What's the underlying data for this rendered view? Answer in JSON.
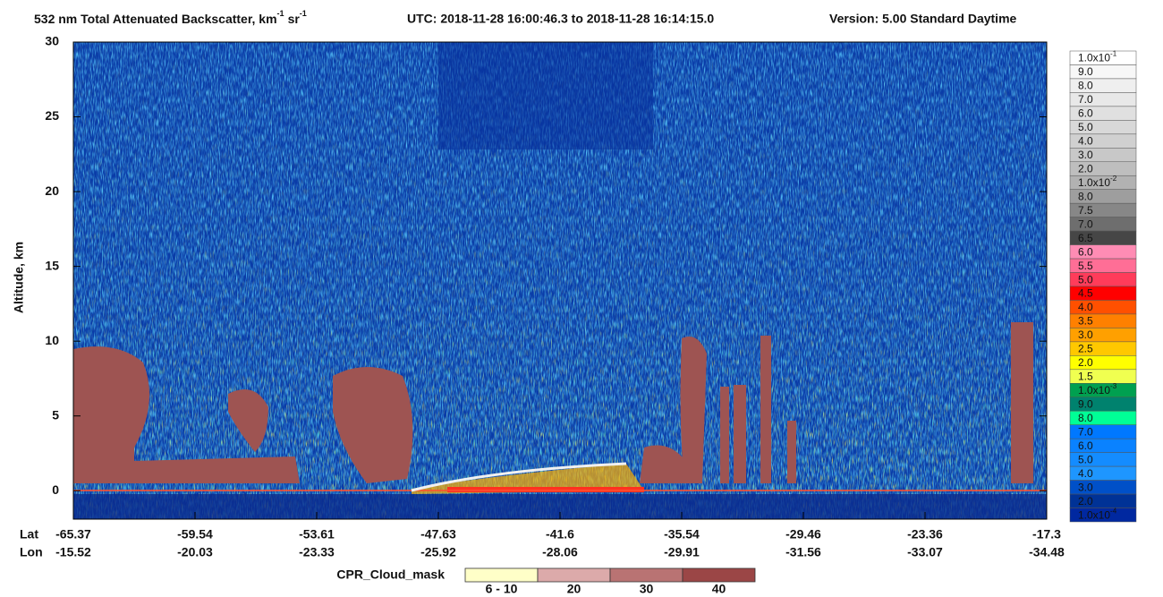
{
  "chart_data": {
    "type": "curtain",
    "title": "532 nm Total Attenuated Backscatter, km",
    "title_exp1": "-1",
    "title_unit2": "sr",
    "title_exp2": "-1",
    "utc": "UTC:  2018-11-28 16:00:46.3  to  2018-11-28 16:14:15.0",
    "version": "Version: 5.00  Standard  Daytime",
    "y_label": "Altitude, km",
    "ylim": [
      -1.9,
      30
    ],
    "yticks": [
      0,
      5,
      10,
      15,
      20,
      25,
      30
    ],
    "lat_label": "Lat",
    "lon_label": "Lon",
    "lat": [
      -65.37,
      -59.54,
      -53.61,
      -47.63,
      -41.6,
      -35.54,
      -29.46,
      -23.36,
      -17.3
    ],
    "lon": [
      -15.52,
      -20.03,
      -23.33,
      -25.92,
      -28.06,
      -29.91,
      -31.56,
      -33.07,
      -34.48
    ],
    "colorbar": [
      {
        "label": "1.0x10",
        "exponent": "-1",
        "color": "#ffffff"
      },
      {
        "label": "9.0",
        "color": "#f7f7f7"
      },
      {
        "label": "8.0",
        "color": "#efefef"
      },
      {
        "label": "7.0",
        "color": "#e8e8e8"
      },
      {
        "label": "6.0",
        "color": "#e0e0e0"
      },
      {
        "label": "5.0",
        "color": "#d8d8d8"
      },
      {
        "label": "4.0",
        "color": "#d0d0d0"
      },
      {
        "label": "3.0",
        "color": "#c8c8c8"
      },
      {
        "label": "2.0",
        "color": "#bebebe"
      },
      {
        "label": "1.0x10",
        "exponent": "-2",
        "color": "#b2b2b2"
      },
      {
        "label": "8.0",
        "color": "#9e9e9e"
      },
      {
        "label": "7.5",
        "color": "#878787"
      },
      {
        "label": "7.0",
        "color": "#6e6e6e"
      },
      {
        "label": "6.5",
        "color": "#464646"
      },
      {
        "label": "6.0",
        "color": "#ff8cb4"
      },
      {
        "label": "5.5",
        "color": "#ff6e96"
      },
      {
        "label": "5.0",
        "color": "#ff3c5a"
      },
      {
        "label": "4.5",
        "color": "#ff0000"
      },
      {
        "label": "4.0",
        "color": "#ff5000"
      },
      {
        "label": "3.5",
        "color": "#ff8000"
      },
      {
        "label": "3.0",
        "color": "#ffa000"
      },
      {
        "label": "2.5",
        "color": "#ffc800"
      },
      {
        "label": "2.0",
        "color": "#ffff00"
      },
      {
        "label": "1.5",
        "color": "#f0ff50"
      },
      {
        "label": "1.0x10",
        "exponent": "-3",
        "color": "#00a050"
      },
      {
        "label": "9.0",
        "color": "#00826e"
      },
      {
        "label": "8.0",
        "color": "#00ff96"
      },
      {
        "label": "7.0",
        "color": "#0078ff"
      },
      {
        "label": "6.0",
        "color": "#0a82ff"
      },
      {
        "label": "5.0",
        "color": "#148cff"
      },
      {
        "label": "4.0",
        "color": "#1e96ff"
      },
      {
        "label": "3.0",
        "color": "#0050c8"
      },
      {
        "label": "2.0",
        "color": "#003296"
      },
      {
        "label": "1.0x10",
        "exponent": "-4",
        "color": "#0028a0"
      }
    ],
    "cpr_title": "CPR_Cloud_mask",
    "cpr_bins": [
      {
        "label": "6 - 10",
        "color": "#ffffc8"
      },
      {
        "label": "20",
        "color": "#dcaaaa"
      },
      {
        "label": "30",
        "color": "#b97373"
      },
      {
        "label": "40",
        "color": "#9b4646"
      }
    ]
  }
}
